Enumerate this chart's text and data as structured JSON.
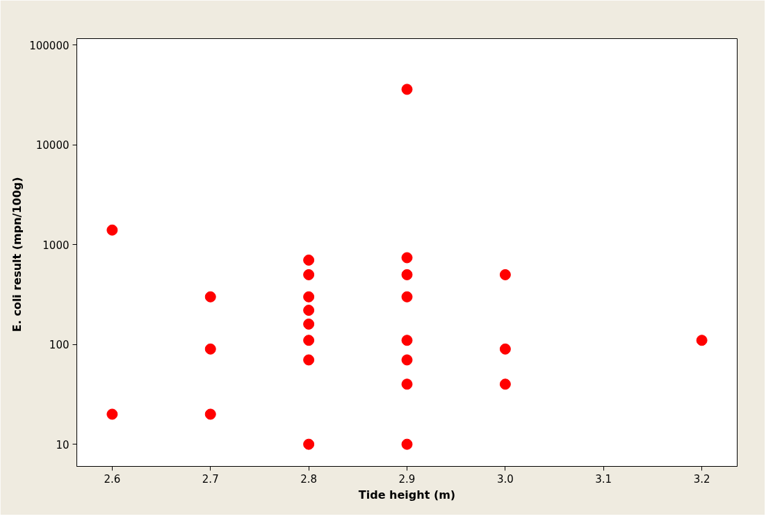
{
  "chart_data": {
    "type": "scatter",
    "xlabel": "Tide height (m)",
    "ylabel": "E. coli result  (mpn/100g)",
    "log": "y",
    "grid": false,
    "marker": "circle",
    "x": [
      2.6,
      2.6,
      2.7,
      2.7,
      2.7,
      2.8,
      2.8,
      2.8,
      2.8,
      2.8,
      2.8,
      2.8,
      2.8,
      2.9,
      2.9,
      2.9,
      2.9,
      2.9,
      2.9,
      2.9,
      2.9,
      3.0,
      3.0,
      3.0,
      3.2
    ],
    "series": [
      {
        "color": "#ff0000",
        "values": [
          1400,
          20,
          300,
          90,
          20,
          700,
          500,
          300,
          220,
          160,
          110,
          70,
          10,
          36000,
          740,
          500,
          300,
          110,
          70,
          40,
          10,
          500,
          90,
          40,
          110
        ]
      }
    ],
    "xlim": [
      2.564,
      3.236
    ],
    "xticks": [
      2.6,
      2.7,
      2.8,
      2.9,
      {
        "value": 3.0,
        "label": "3.0"
      },
      3.1,
      3.2
    ],
    "ylim": [
      6,
      116000
    ],
    "yticks": [
      10,
      100,
      1000,
      10000,
      100000
    ]
  }
}
